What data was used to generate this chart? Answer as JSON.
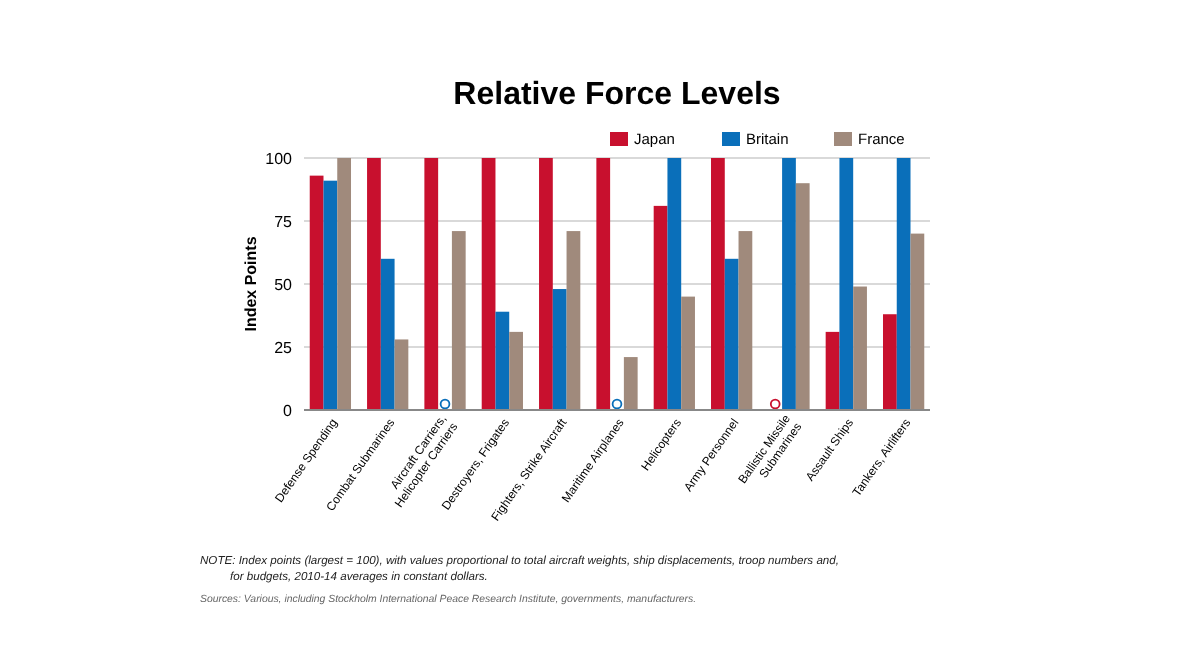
{
  "chart_data": {
    "type": "bar",
    "title": "Relative Force Levels",
    "ylabel": "Index Points",
    "categories": [
      "Defense Spending",
      "Combat Submarines",
      "Aircraft Carriers,\nHelicopter Carriers",
      "Destroyers, Frigates",
      "Fighters, Strike Aircraft",
      "Maritime Airplanes",
      "Helicopters",
      "Army Personnel",
      "Ballistic Missile\nSubmarines",
      "Assault Ships",
      "Tankers, Airlifters"
    ],
    "series": [
      {
        "name": "Japan",
        "color": "#c8102e",
        "values": [
          93,
          100,
          100,
          100,
          100,
          100,
          81,
          100,
          0,
          31,
          38
        ]
      },
      {
        "name": "Britain",
        "color": "#0a6fba",
        "values": [
          91,
          60,
          0,
          39,
          48,
          0,
          100,
          60,
          100,
          100,
          100
        ]
      },
      {
        "name": "France",
        "color": "#a08a7c",
        "values": [
          100,
          28,
          71,
          31,
          71,
          21,
          45,
          71,
          90,
          49,
          70
        ]
      }
    ],
    "ylim": [
      0,
      100
    ],
    "yticks": [
      0,
      25,
      50,
      75,
      100
    ],
    "grid": "y",
    "legend": "top right",
    "annotations": [
      "NOTE: Index points (largest = 100), with values proportional to total aircraft weights, ship displacements, troop numbers and,\nfor budgets, 2010-14 averages in constant dollars.",
      "Sources: Various, including Stockholm International Peace Research Institute, governments, manufacturers."
    ]
  }
}
